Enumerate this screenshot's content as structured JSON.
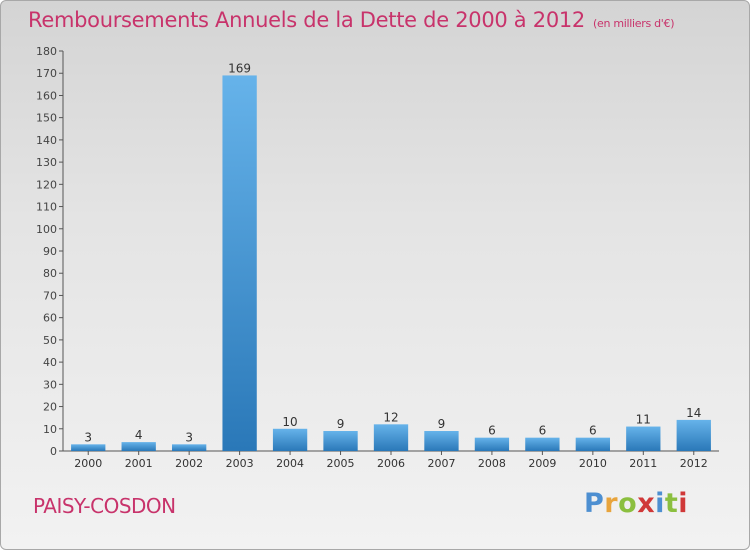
{
  "chart_data": {
    "type": "bar",
    "title": "Remboursements Annuels de la Dette de 2000 à 2012",
    "unit_note": "(en milliers d'€)",
    "categories": [
      "2000",
      "2001",
      "2002",
      "2003",
      "2004",
      "2005",
      "2006",
      "2007",
      "2008",
      "2009",
      "2010",
      "2011",
      "2012"
    ],
    "values": [
      3,
      4,
      3,
      169,
      10,
      9,
      12,
      9,
      6,
      6,
      6,
      11,
      14
    ],
    "data_labels": [
      "3",
      "4",
      "3",
      "169",
      "10",
      "9",
      "12",
      "9",
      "6",
      "6",
      "6",
      "11",
      "14"
    ],
    "ylim": [
      0,
      180
    ],
    "yticks": [
      0,
      10,
      20,
      30,
      40,
      50,
      60,
      70,
      80,
      90,
      100,
      110,
      120,
      130,
      140,
      150,
      160,
      170,
      180
    ],
    "xlabel": "",
    "ylabel": "",
    "grid": false,
    "colors": {
      "bar_light": "#66b3ea",
      "bar_dark": "#2a78b8",
      "axis": "#555555"
    }
  },
  "footer": {
    "commune": "PAISY-COSDON",
    "logo_letters": [
      "P",
      "r",
      "o",
      "x",
      "i",
      "t",
      "i"
    ]
  }
}
